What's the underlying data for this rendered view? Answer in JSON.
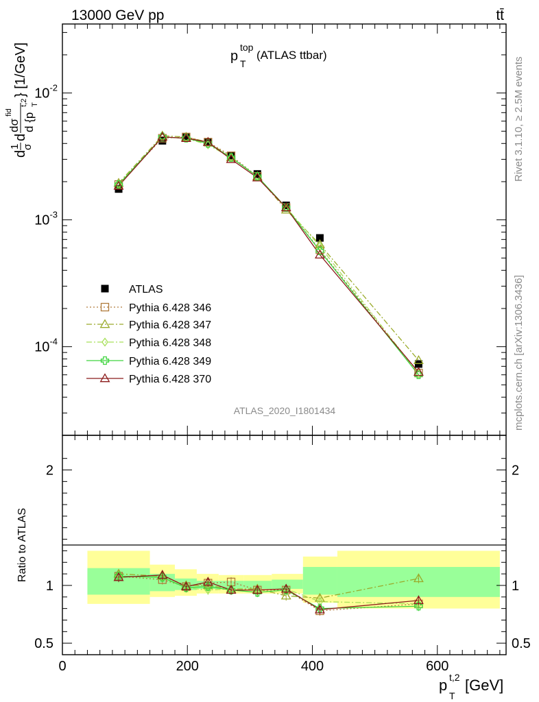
{
  "header": {
    "energy_label": "13000 GeV pp",
    "process_label": "tt̄"
  },
  "side_text": {
    "rivet": "Rivet 3.1.10, ≥ 2.5M events",
    "mcplots": "mcplots.cern.ch [arXiv:1306.3436]"
  },
  "analysis_id": "ATLAS_2020_I1801434",
  "plot_title": {
    "main": "p",
    "sup": "top",
    "sub": "T",
    "suffix": " (ATLAS ttbar)"
  },
  "y_axis_label": "d¹σ/dσ^{fid}/d{p_T^{t,2}} [1/GeV]",
  "y_axis_label_parts": {
    "prefix": "d",
    "frac_num": "1",
    "frac_den": "σ",
    "mid": "d",
    "sigma_num": "dσ",
    "sigma_sup": "fid",
    "brace_den": "d {p",
    "brace_sub": "T",
    "brace_sup": "t,2",
    "close": "} [1/GeV]"
  },
  "ratio_y_label": "Ratio to ATLAS",
  "x_axis_label": {
    "main": "p",
    "sup": "t,2",
    "sub": "T",
    "unit": " [GeV]"
  },
  "legend": [
    {
      "label": "ATLAS",
      "marker": "filled-square",
      "color": "#000000",
      "line": "none"
    },
    {
      "label": "Pythia 6.428 346",
      "marker": "open-square",
      "color": "#b07a3a",
      "line": "dotted"
    },
    {
      "label": "Pythia 6.428 347",
      "marker": "open-triangle",
      "color": "#9aaa2a",
      "line": "dashdot"
    },
    {
      "label": "Pythia 6.428 348",
      "marker": "open-diamond",
      "color": "#a8e05a",
      "line": "dashdot"
    },
    {
      "label": "Pythia 6.428 349",
      "marker": "open-cross",
      "color": "#3ed43e",
      "line": "solid"
    },
    {
      "label": "Pythia 6.428 370",
      "marker": "open-triangle",
      "color": "#8b1a1a",
      "line": "solid"
    }
  ],
  "chart_data": {
    "type": "scatter",
    "xlabel": "p_T^{t,2} [GeV]",
    "ylabel": "d¹σ/dσ^{fid}/d{p_T^{t,2}} [1/GeV]",
    "xlim": [
      0,
      710
    ],
    "ylim": [
      2e-05,
      0.035
    ],
    "y_scale": "log",
    "x_ticks": [
      0,
      200,
      400,
      600
    ],
    "y_ticks": [
      "10^-4",
      "10^-3",
      "10^-2"
    ],
    "x": [
      90,
      160,
      198,
      233,
      270,
      312,
      358,
      412,
      570
    ],
    "bin_edges": [
      40,
      140,
      180,
      215,
      250,
      290,
      335,
      385,
      440,
      700
    ],
    "series": [
      {
        "name": "ATLAS",
        "values": [
          0.00175,
          0.0042,
          0.0045,
          0.0041,
          0.0032,
          0.0023,
          0.0013,
          0.00072,
          7.3e-05
        ]
      },
      {
        "name": "Pythia 6.428 346",
        "values": [
          0.0019,
          0.0044,
          0.0045,
          0.0041,
          0.0032,
          0.0022,
          0.00125,
          0.00058,
          6.2e-05
        ]
      },
      {
        "name": "Pythia 6.428 347",
        "values": [
          0.00195,
          0.0046,
          0.0045,
          0.0041,
          0.0031,
          0.0022,
          0.0012,
          0.00064,
          7.8e-05
        ]
      },
      {
        "name": "Pythia 6.428 348",
        "values": [
          0.0019,
          0.0045,
          0.0044,
          0.0039,
          0.0031,
          0.0022,
          0.00125,
          0.00062,
          6.1e-05
        ]
      },
      {
        "name": "Pythia 6.428 349",
        "values": [
          0.0019,
          0.0045,
          0.0044,
          0.004,
          0.0031,
          0.0022,
          0.00125,
          0.00057,
          6e-05
        ]
      },
      {
        "name": "Pythia 6.428 370",
        "values": [
          0.00185,
          0.0045,
          0.0044,
          0.0041,
          0.003,
          0.00215,
          0.00125,
          0.00053,
          6.3e-05
        ]
      }
    ],
    "ratio": {
      "ylabel": "Ratio to ATLAS",
      "ylim": [
        0.4,
        2.3
      ],
      "y_ticks": [
        0.5,
        1,
        2
      ],
      "band_outer": [
        [
          0.84,
          1.3
        ],
        [
          0.9,
          1.18
        ],
        [
          0.91,
          1.14
        ],
        [
          0.93,
          1.1
        ],
        [
          0.93,
          1.09
        ],
        [
          0.93,
          1.09
        ],
        [
          0.93,
          1.1
        ],
        [
          0.85,
          1.25
        ],
        [
          0.8,
          1.3
        ]
      ],
      "band_inner": [
        [
          0.92,
          1.15
        ],
        [
          0.95,
          1.1
        ],
        [
          0.96,
          1.06
        ],
        [
          0.97,
          1.04
        ],
        [
          0.97,
          1.04
        ],
        [
          0.97,
          1.04
        ],
        [
          0.97,
          1.05
        ],
        [
          0.92,
          1.16
        ],
        [
          0.9,
          1.16
        ]
      ],
      "series": [
        {
          "name": "Pythia 6.428 346",
          "values": [
            1.08,
            1.05,
            0.99,
            1.02,
            1.03,
            0.96,
            0.96,
            0.78,
            0.84
          ]
        },
        {
          "name": "Pythia 6.428 347",
          "values": [
            1.1,
            1.08,
            1.0,
            1.0,
            0.97,
            0.97,
            0.91,
            0.89,
            1.06
          ]
        },
        {
          "name": "Pythia 6.428 348",
          "values": [
            1.08,
            1.07,
            0.98,
            0.96,
            0.97,
            0.96,
            0.97,
            0.86,
            0.84
          ]
        },
        {
          "name": "Pythia 6.428 349",
          "values": [
            1.08,
            1.07,
            0.98,
            0.99,
            0.96,
            0.94,
            0.96,
            0.8,
            0.82
          ]
        },
        {
          "name": "Pythia 6.428 370",
          "values": [
            1.07,
            1.09,
            0.99,
            1.03,
            0.96,
            0.96,
            0.97,
            0.79,
            0.87
          ]
        }
      ]
    }
  }
}
